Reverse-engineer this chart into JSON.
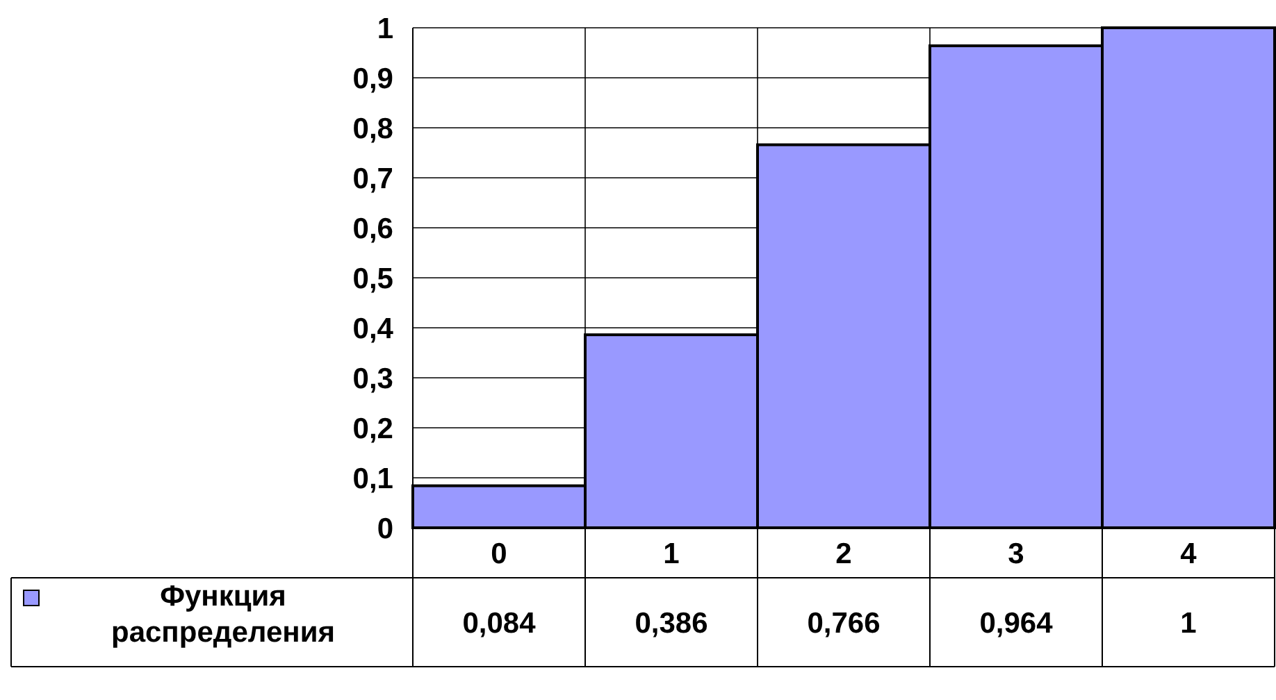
{
  "chart_data": {
    "type": "bar",
    "categories": [
      "0",
      "1",
      "2",
      "3",
      "4"
    ],
    "series": [
      {
        "name": "Функция распределения",
        "color": "#9999ff",
        "values": [
          0.084,
          0.386,
          0.766,
          0.964,
          1
        ],
        "value_labels": [
          "0,084",
          "0,386",
          "0,766",
          "0,964",
          "1"
        ]
      }
    ],
    "ylim": [
      0,
      1
    ],
    "yticks": [
      0,
      {
        "value": 0.1,
        "label": "0,1"
      },
      {
        "value": 0.2,
        "label": "0,2"
      },
      {
        "value": 0.3,
        "label": "0,3"
      },
      {
        "value": 0.4,
        "label": "0,4"
      },
      {
        "value": 0.5,
        "label": "0,5"
      },
      {
        "value": 0.6,
        "label": "0,6"
      },
      {
        "value": 0.7,
        "label": "0,7"
      },
      {
        "value": 0.8,
        "label": "0,8"
      },
      {
        "value": 0.9,
        "label": "0,9"
      },
      1
    ],
    "grid": true,
    "legend": "bottom left"
  }
}
